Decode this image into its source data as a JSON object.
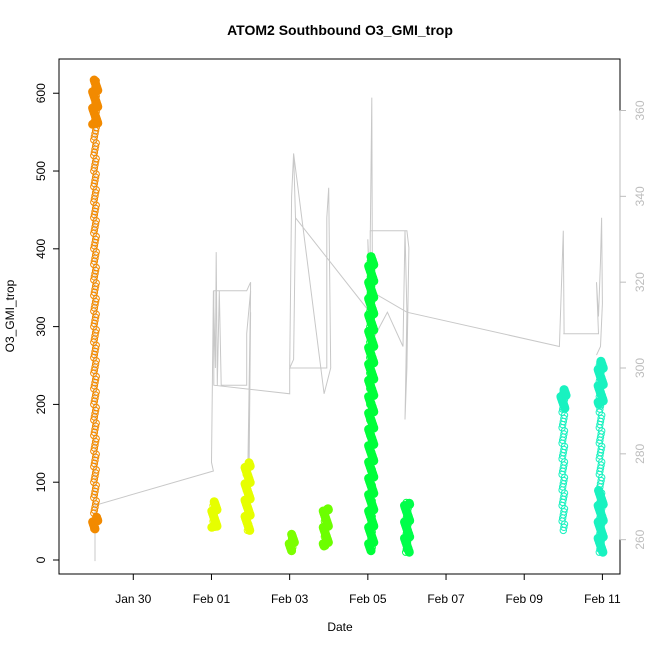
{
  "chart_data": {
    "type": "scatter",
    "title": "ATOM2 Southbound O3_GMI_trop",
    "xlabel": "Date",
    "ylabel": "O3_GMI_trop",
    "x_tick_labels": [
      "Jan 30",
      "Feb 01",
      "Feb 03",
      "Feb 05",
      "Feb 07",
      "Feb 09",
      "Feb 11"
    ],
    "x_tick_days": [
      30,
      32,
      34,
      36,
      38,
      40,
      42
    ],
    "xlim_days": [
      28.1,
      42.45
    ],
    "ylim": [
      -18,
      644
    ],
    "y_ticks": [
      0,
      100,
      200,
      300,
      400,
      500,
      600
    ],
    "y2lim": [
      252,
      372
    ],
    "y2_ticks": [
      260,
      280,
      300,
      320,
      340,
      360
    ],
    "y2_color": "#bdbdbd",
    "grid": false,
    "point_series": [
      {
        "day": 29.02,
        "ymin": 40,
        "ymax": 617,
        "solid_min": 40,
        "solid_max": 55,
        "solid_top_min": 560,
        "solid_top_max": 617,
        "color": "#f28a00"
      },
      {
        "day": 32.07,
        "ymin": 42,
        "ymax": 76,
        "solid_min": 42,
        "solid_max": 76,
        "color": "#e6ff00"
      },
      {
        "day": 32.92,
        "ymin": 38,
        "ymax": 125,
        "solid_min": 38,
        "solid_max": 125,
        "color": "#e6ff00"
      },
      {
        "day": 34.05,
        "ymin": 12,
        "ymax": 34,
        "solid_min": 12,
        "solid_max": 34,
        "color": "#7cff00"
      },
      {
        "day": 34.92,
        "ymin": 18,
        "ymax": 66,
        "solid_min": 18,
        "solid_max": 66,
        "color": "#6cff00"
      },
      {
        "day": 36.08,
        "ymin": 12,
        "ymax": 390,
        "solid_min": 12,
        "solid_max": 390,
        "color": "#00ff3a"
      },
      {
        "day": 37.0,
        "ymin": 10,
        "ymax": 74,
        "solid_min": 10,
        "solid_max": 74,
        "color": "#00ff4a"
      },
      {
        "day": 41.0,
        "ymin": 38,
        "ymax": 220,
        "solid_min": 195,
        "solid_max": 220,
        "color": "#19f2c0"
      },
      {
        "day": 41.95,
        "ymin": 10,
        "ymax": 256,
        "solid_min": 10,
        "solid_max": 90,
        "solid_top_min": 200,
        "solid_top_max": 256,
        "color": "#19f2c0"
      }
    ],
    "line_series": {
      "name": "",
      "color": "#c8c8c8",
      "axis": "right",
      "points": [
        [
          29.02,
          268
        ],
        [
          29.02,
          255
        ],
        [
          29.02,
          360
        ],
        [
          29.02,
          268
        ],
        [
          32.05,
          276
        ],
        [
          32.0,
          278
        ],
        [
          32.05,
          318
        ],
        [
          32.1,
          300
        ],
        [
          32.12,
          327
        ],
        [
          32.15,
          296
        ],
        [
          32.2,
          318
        ],
        [
          32.25,
          296
        ],
        [
          32.35,
          296
        ],
        [
          32.9,
          296
        ],
        [
          32.9,
          308
        ],
        [
          33.0,
          318
        ],
        [
          32.93,
          276
        ],
        [
          33.0,
          313
        ],
        [
          32.95,
          265
        ],
        [
          33.0,
          320
        ],
        [
          32.9,
          318
        ],
        [
          32.4,
          318
        ],
        [
          32.06,
          318
        ],
        [
          32.06,
          296
        ],
        [
          34.0,
          294
        ],
        [
          34.0,
          300
        ],
        [
          34.05,
          340
        ],
        [
          34.1,
          350
        ],
        [
          34.15,
          335
        ],
        [
          34.1,
          302
        ],
        [
          34.0,
          300
        ],
        [
          34.95,
          300
        ],
        [
          34.95,
          335
        ],
        [
          35.0,
          342
        ],
        [
          35.05,
          300
        ],
        [
          34.88,
          294
        ],
        [
          34.1,
          350
        ],
        [
          34.15,
          335
        ],
        [
          36.05,
          313
        ],
        [
          36.0,
          330
        ],
        [
          36.05,
          320
        ],
        [
          36.1,
          363
        ],
        [
          36.12,
          312
        ],
        [
          36.15,
          307
        ],
        [
          36.5,
          313
        ],
        [
          36.9,
          305
        ],
        [
          36.95,
          332
        ],
        [
          37.0,
          313
        ],
        [
          36.95,
          288
        ],
        [
          37.0,
          300
        ],
        [
          37.05,
          328
        ],
        [
          37.0,
          332
        ],
        [
          36.06,
          332
        ],
        [
          36.06,
          318
        ],
        [
          37.0,
          313
        ],
        [
          40.9,
          305
        ],
        [
          41.0,
          332
        ],
        [
          41.02,
          308
        ],
        [
          41.0,
          308
        ],
        [
          41.9,
          308
        ],
        [
          41.85,
          320
        ],
        [
          41.9,
          312
        ],
        [
          41.95,
          325
        ],
        [
          41.98,
          335
        ],
        [
          42.0,
          315
        ],
        [
          41.95,
          305
        ],
        [
          41.85,
          303
        ]
      ]
    }
  }
}
